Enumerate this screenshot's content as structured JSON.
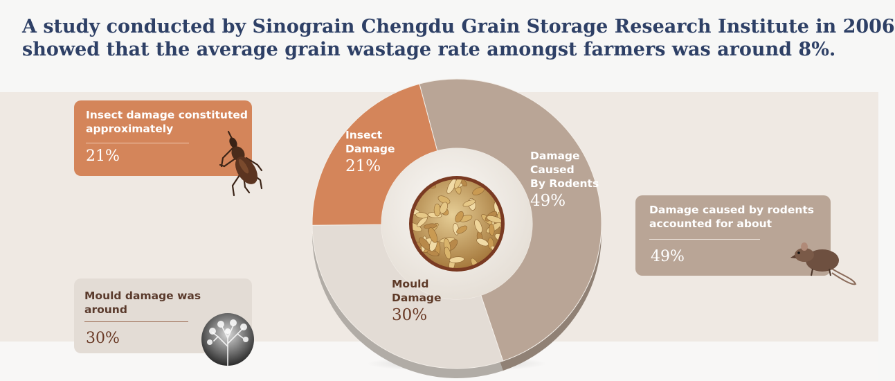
{
  "title": {
    "line1": "A study conducted by Sinograin Chengdu Grain Storage Research Institute in 2006",
    "line2": "showed that the average grain wastage rate amongst farmers was around 8%."
  },
  "cards": {
    "insect": {
      "label": "Insect damage constituted approximately",
      "value": "21%",
      "icon": "weevil-icon"
    },
    "mould": {
      "label": "Mould damage was around",
      "value": "30%",
      "icon": "mould-micrograph-icon"
    },
    "rodent": {
      "label": "Damage caused by rodents accounted for about",
      "value": "49%",
      "icon": "rat-icon"
    }
  },
  "chart_data": {
    "type": "pie",
    "style": "donut",
    "categories": [
      "Damage Caused By Rodents",
      "Mould Damage",
      "Insect Damage"
    ],
    "values": [
      49,
      30,
      21
    ],
    "unit": "%",
    "slice_labels": [
      {
        "name_lines": [
          "Damage",
          "Caused",
          "By Rodents"
        ],
        "value": "49%"
      },
      {
        "name_lines": [
          "Mould",
          "Damage"
        ],
        "value": "30%"
      },
      {
        "name_lines": [
          "Insect",
          "Damage"
        ],
        "value": "21%"
      }
    ],
    "colors": [
      "#b9a596",
      "#e3dcd5",
      "#d4855a"
    ],
    "center_image": "grain-kernels-icon"
  }
}
